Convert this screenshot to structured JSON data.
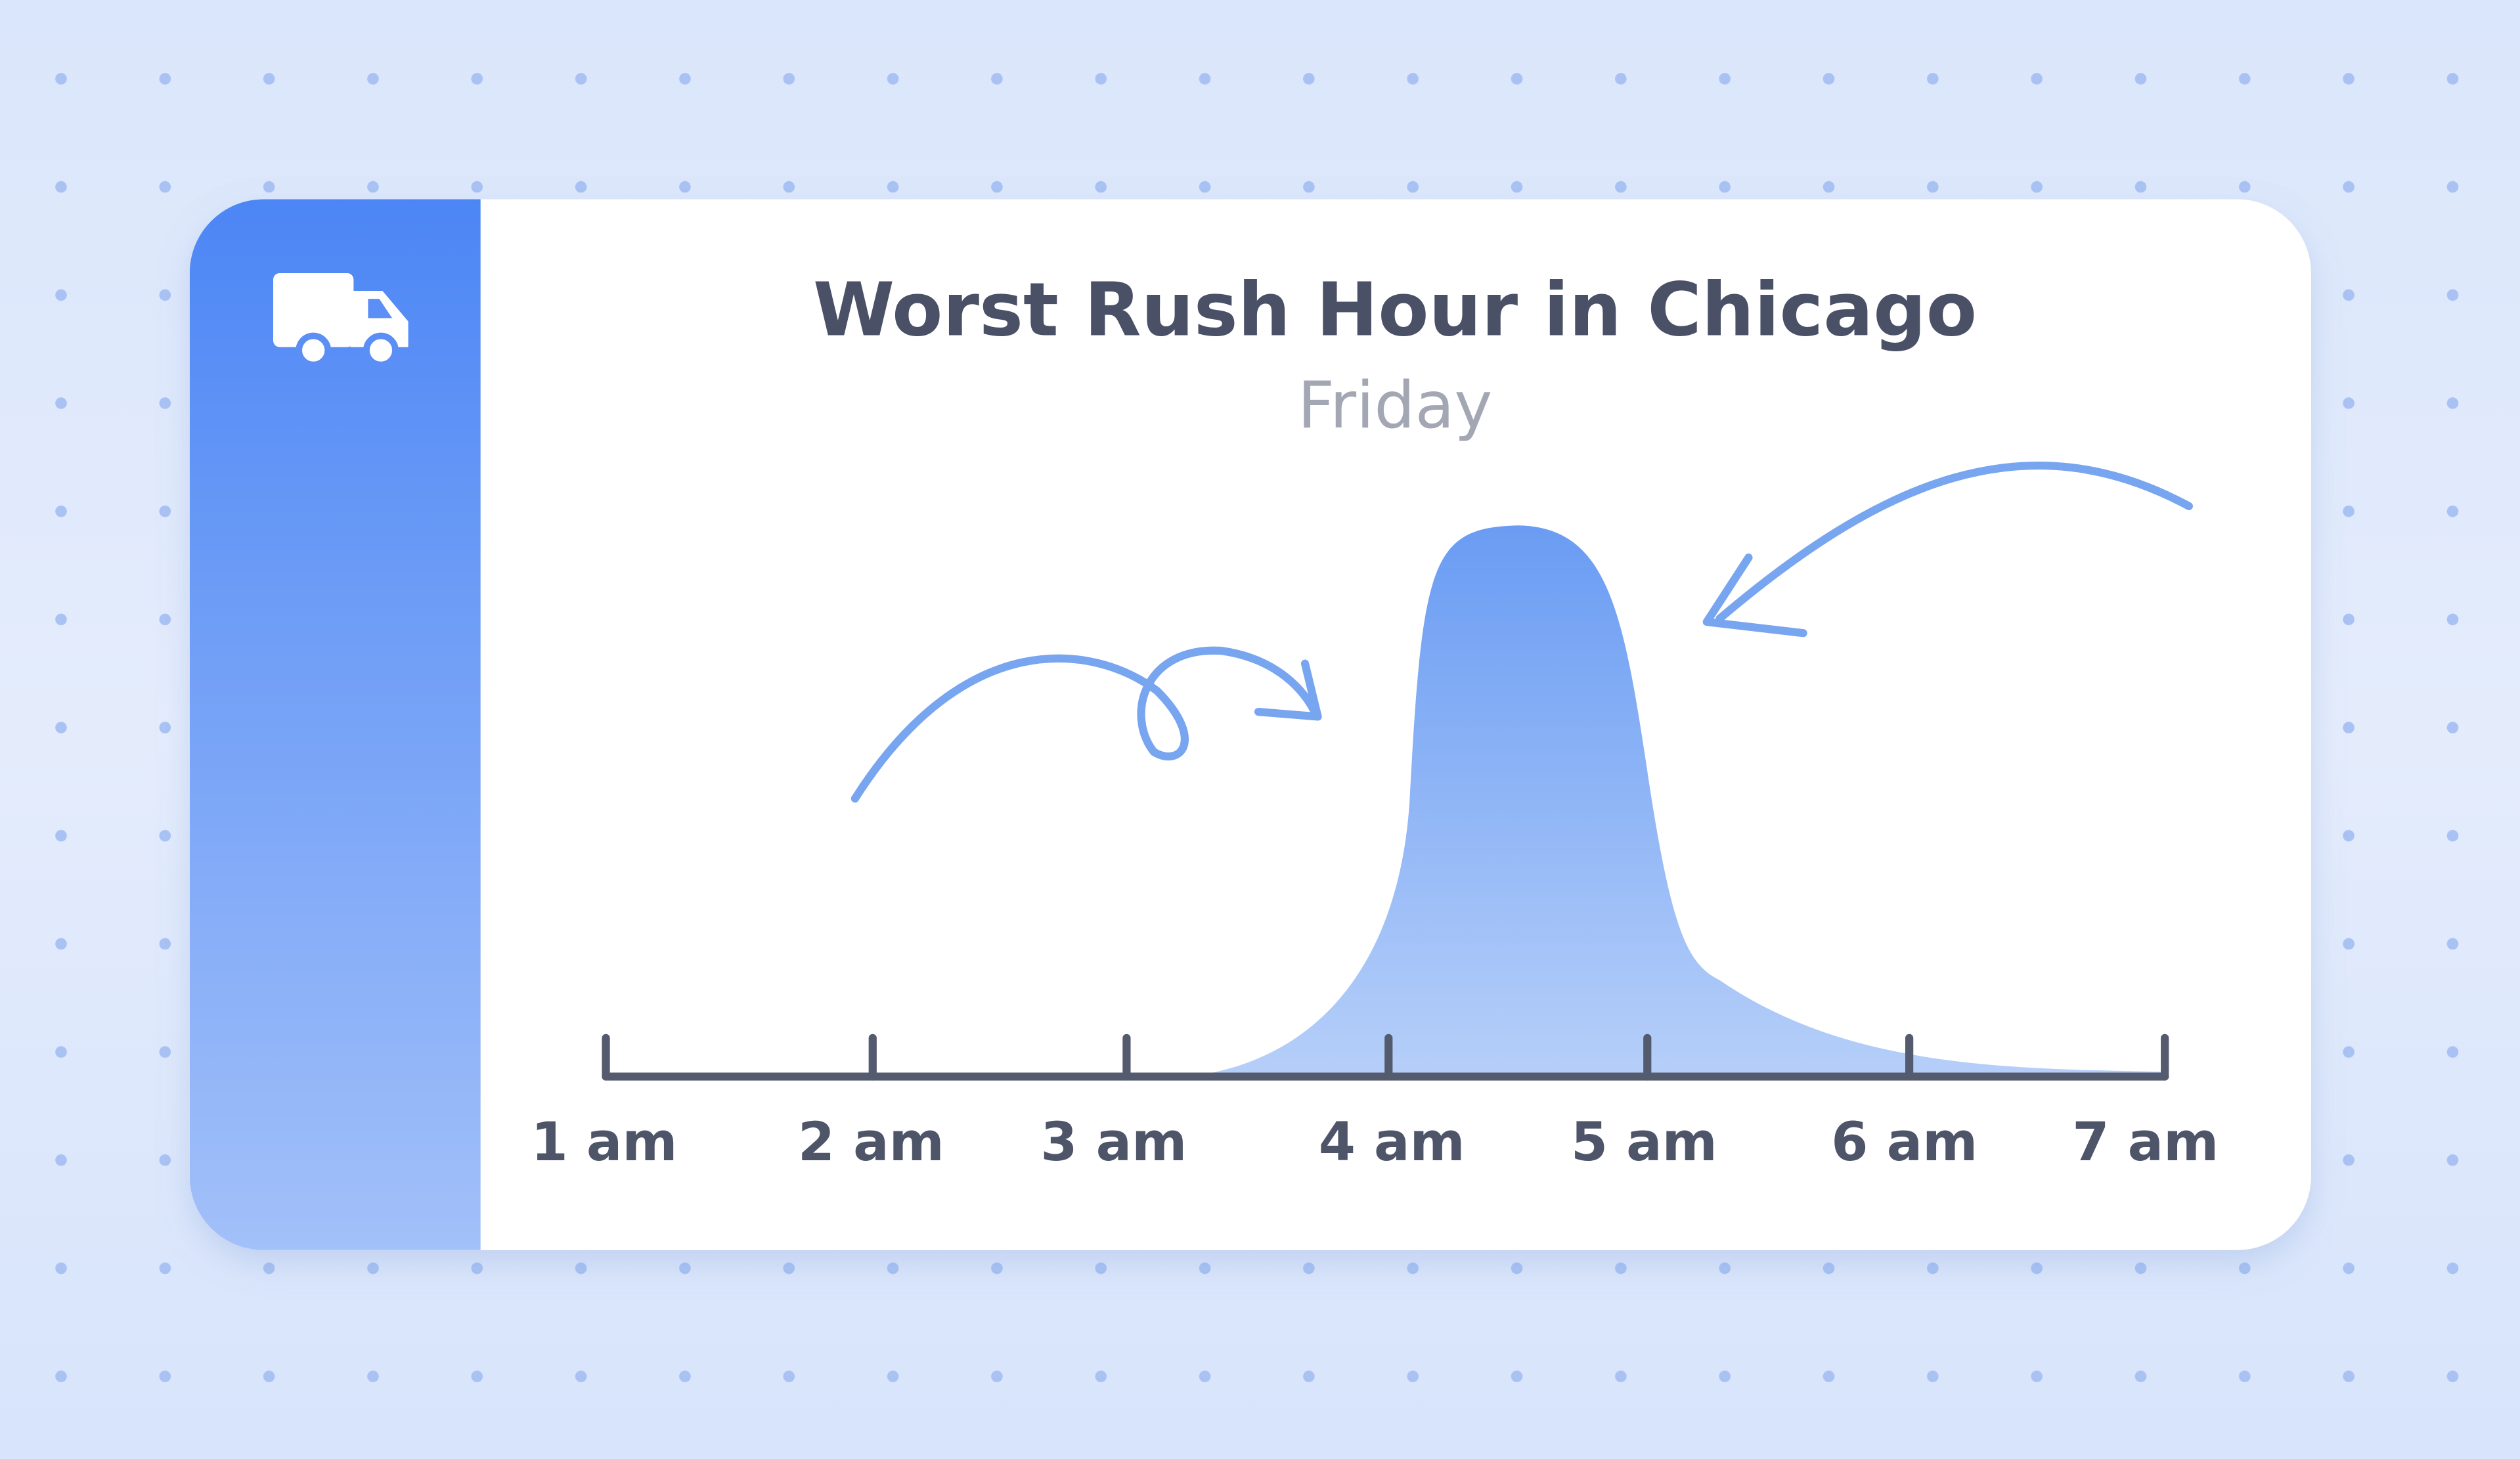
{
  "header": {
    "title": "Worst Rush Hour in Chicago",
    "subtitle": "Friday"
  },
  "axis": {
    "labels": [
      "1 am",
      "2 am",
      "3 am",
      "4 am",
      "5 am",
      "6 am",
      "7 am"
    ]
  }
}
